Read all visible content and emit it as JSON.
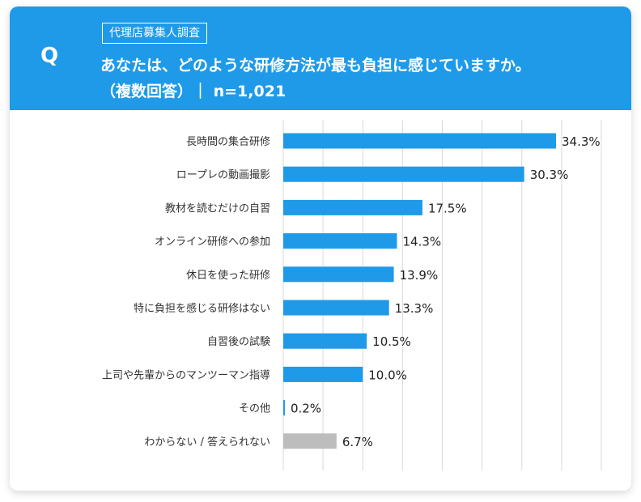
{
  "header": {
    "q_label": "Q",
    "tag": "代理店募集人調査",
    "question_line1": "あなたは、どのような研修方法が最も負担に感じていますか。",
    "question_line2": "（複数回答）｜ n=1,021"
  },
  "colors": {
    "header_bg": "#1f9ae8",
    "bar": "#1f9ae8",
    "bar_muted": "#bdbdbd",
    "grid": "#d9d9d9"
  },
  "chart_data": {
    "type": "bar",
    "orientation": "horizontal",
    "title": "あなたは、どのような研修方法が最も負担に感じていますか。",
    "categories": [
      "長時間の集合研修",
      "ロープレの動画撮影",
      "教材を読むだけの自習",
      "オンライン研修への参加",
      "休日を使った研修",
      "特に負担を感じる研修はない",
      "自習後の試験",
      "上司や先輩からのマンツーマン指導",
      "その他",
      "わからない / 答えられない"
    ],
    "values": [
      34.3,
      30.3,
      17.5,
      14.3,
      13.9,
      13.3,
      10.5,
      10.0,
      0.2,
      6.7
    ],
    "labels": [
      "34.3%",
      "30.3%",
      "17.5%",
      "14.3%",
      "13.9%",
      "13.3%",
      "10.5%",
      "10.0%",
      "0.2%",
      "6.7%"
    ],
    "muted": [
      false,
      false,
      false,
      false,
      false,
      false,
      false,
      false,
      false,
      true
    ],
    "xlim": [
      0,
      40
    ],
    "grid": true
  }
}
